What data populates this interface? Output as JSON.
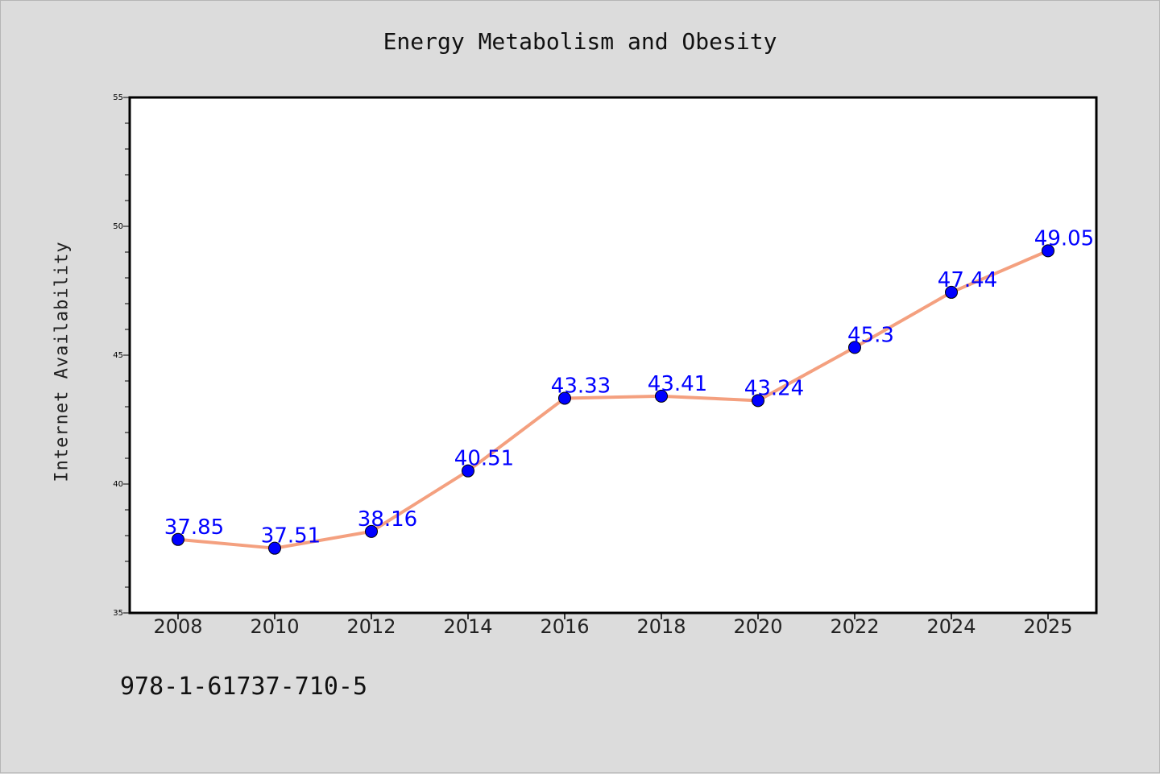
{
  "chart_data": {
    "type": "line",
    "title": "Energy Metabolism and Obesity",
    "xlabel": "",
    "ylabel": "Internet Availability",
    "categories": [
      "2008",
      "2010",
      "2012",
      "2014",
      "2016",
      "2018",
      "2020",
      "2022",
      "2024",
      "2025"
    ],
    "series": [
      {
        "values": [
          37.85,
          37.51,
          38.16,
          40.51,
          43.33,
          43.41,
          43.24,
          45.3,
          47.44,
          49.05
        ],
        "labels": [
          "37.85",
          "37.51",
          "38.16",
          "40.51",
          "43.33",
          "43.41",
          "43.24",
          "45.3",
          "47.44",
          "49.05"
        ]
      }
    ],
    "ylim": [
      35,
      55
    ],
    "yticks": [
      "35",
      "40",
      "45",
      "50",
      "55"
    ],
    "grid": false,
    "colors": {
      "line": "#f4a07f",
      "marker": "#0000ff",
      "label": "#0000ff"
    }
  },
  "footnote": "978-1-61737-710-5"
}
